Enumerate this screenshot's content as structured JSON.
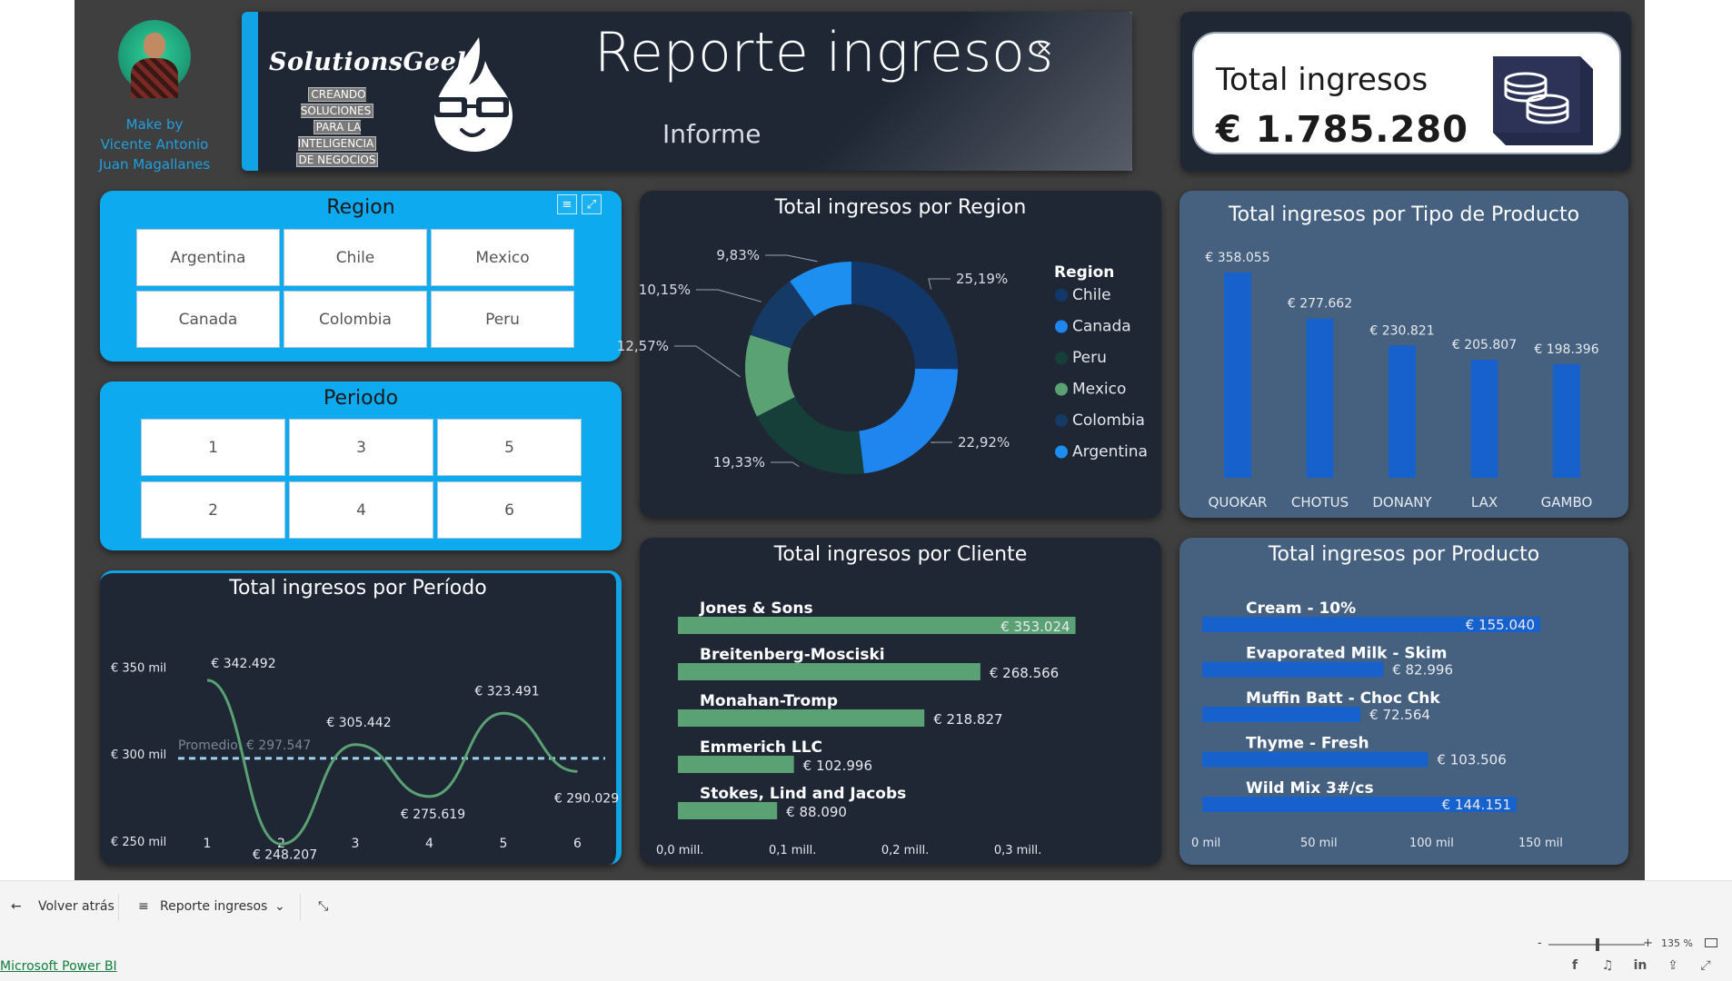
{
  "header": {
    "made_by": [
      "Make by",
      "Vicente Antonio",
      "Juan Magallanes"
    ],
    "brand_name": "SolutionsGeek",
    "brand_tagline": [
      "CREANDO SOLUCIONES",
      "PARA LA INTELIGENCIA",
      "DE NEGOCIOS"
    ],
    "report_title": "Reporte ingresos",
    "report_subtitle": "Informe",
    "close_symbol": "×"
  },
  "kpi": {
    "title": "Total ingresos",
    "value": "€ 1.785.280",
    "icon": "coins-icon"
  },
  "slicer_region": {
    "title": "Region",
    "items": [
      "Argentina",
      "Chile",
      "Mexico",
      "Canada",
      "Colombia",
      "Peru"
    ]
  },
  "slicer_periodo": {
    "title": "Periodo",
    "items": [
      "1",
      "3",
      "5",
      "2",
      "4",
      "6"
    ]
  },
  "charts": {
    "region": {
      "type": "pie",
      "title": "Total ingresos por Region",
      "legend_title": "Region",
      "slices": [
        {
          "name": "Chile",
          "pct": 25.19,
          "label": "25,19%",
          "color": "#12386b"
        },
        {
          "name": "Canada",
          "pct": 22.92,
          "label": "22,92%",
          "color": "#1e86ee"
        },
        {
          "name": "Peru",
          "pct": 19.33,
          "label": "19,33%",
          "color": "#173f39"
        },
        {
          "name": "Mexico",
          "pct": 12.57,
          "label": "12,57%",
          "color": "#5aa173"
        },
        {
          "name": "Colombia",
          "pct": 10.15,
          "label": "10,15%",
          "color": "#163a66"
        },
        {
          "name": "Argentina",
          "pct": 9.83,
          "label": "9,83%",
          "color": "#1c8ff0"
        }
      ]
    },
    "tipo_producto": {
      "type": "bar",
      "title": "Total ingresos por Tipo de Producto",
      "categories": [
        "QUOKAR",
        "CHOTUS",
        "DONANY",
        "LAX",
        "GAMBO"
      ],
      "values": [
        358055,
        277662,
        230821,
        205807,
        198396
      ],
      "labels": [
        "€ 358.055",
        "€ 277.662",
        "€ 230.821",
        "€ 205.807",
        "€ 198.396"
      ],
      "color": "#1761cc"
    },
    "periodo": {
      "type": "line",
      "title": "Total ingresos por Período",
      "x": [
        1,
        2,
        3,
        4,
        5,
        6
      ],
      "values": [
        342492,
        248207,
        305442,
        275619,
        323491,
        290029
      ],
      "labels": [
        "€ 342.492",
        "€ 248.207",
        "€ 305.442",
        "€ 275.619",
        "€ 323.491",
        "€ 290.029"
      ],
      "y_ticks": [
        250000,
        300000,
        350000
      ],
      "y_tick_labels": [
        "€ 250 mil",
        "€ 300 mil",
        "€ 350 mil"
      ],
      "ylim": [
        240000,
        355000
      ],
      "average": 297547,
      "average_label": "Promedio: € 297.547",
      "line_color": "#5aa173",
      "average_color": "#9fd3f0"
    },
    "cliente": {
      "type": "bar",
      "orientation": "horizontal",
      "title": "Total ingresos por Cliente",
      "categories": [
        "Jones & Sons",
        "Breitenberg-Mosciski",
        "Monahan-Tromp",
        "Emmerich LLC",
        "Stokes, Lind and Jacobs"
      ],
      "values": [
        353024,
        268566,
        218827,
        102996,
        88090
      ],
      "labels": [
        "€ 353.024",
        "€ 268.566",
        "€ 218.827",
        "€ 102.996",
        "€ 88.090"
      ],
      "x_ticks": [
        0,
        100000,
        200000,
        300000
      ],
      "x_tick_labels": [
        "0,0 mill.",
        "0,1 mill.",
        "0,2 mill.",
        "0,3 mill."
      ],
      "xlim": [
        0,
        355000
      ],
      "color": "#5aa173"
    },
    "producto": {
      "type": "bar",
      "orientation": "horizontal",
      "title": "Total ingresos por Producto",
      "categories": [
        "Cream - 10%",
        "Evaporated Milk - Skim",
        "Muffin Batt - Choc Chk",
        "Thyme - Fresh",
        "Wild Mix 3#/cs"
      ],
      "values": [
        155040,
        82996,
        72564,
        103506,
        144151
      ],
      "labels": [
        "€ 155.040",
        "€ 82.996",
        "€ 72.564",
        "€ 103.506",
        "€ 144.151"
      ],
      "x_ticks": [
        0,
        50000,
        100000,
        150000
      ],
      "x_tick_labels": [
        "0 mil",
        "50 mil",
        "100 mil",
        "150 mil"
      ],
      "xlim": [
        0,
        160000
      ],
      "color": "#1761cc"
    }
  },
  "taskbar": {
    "back_label": "Volver atrás",
    "page_label": "Reporte ingresos",
    "zoom_minus": "-",
    "zoom_plus": "+",
    "zoom_level": "135 %",
    "powerbi_link": "Microsoft Power BI"
  }
}
